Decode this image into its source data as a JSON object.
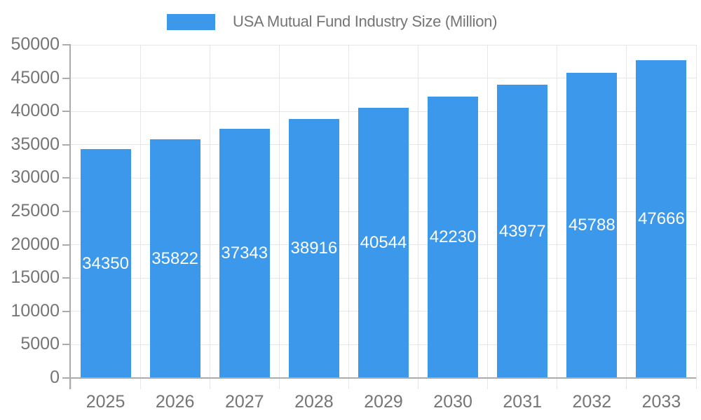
{
  "legend": {
    "label": "USA Mutual Fund Industry Size (Million)"
  },
  "chart_data": {
    "type": "bar",
    "title": "USA Mutual Fund Industry Size (Million)",
    "legend_position": "top",
    "categories": [
      "2025",
      "2026",
      "2027",
      "2028",
      "2029",
      "2030",
      "2031",
      "2032",
      "2033"
    ],
    "series": [
      {
        "name": "USA Mutual Fund Industry Size (Million)",
        "values": [
          34350,
          35822,
          37343,
          38916,
          40544,
          42230,
          43977,
          45788,
          47666
        ]
      }
    ],
    "bar_labels": [
      "34350",
      "35822",
      "37343",
      "38916",
      "40544",
      "42230",
      "43977",
      "45788",
      "47666"
    ],
    "xlabel": "",
    "ylabel": "",
    "ylim": [
      0,
      50000
    ],
    "ytick_labels": [
      "0",
      "5000",
      "10000",
      "15000",
      "20000",
      "25000",
      "30000",
      "35000",
      "40000",
      "45000",
      "50000"
    ],
    "grid": true
  },
  "colors": {
    "bar": "#3B98EB",
    "axis_text": "#757575",
    "legend_text": "#757575",
    "grid_line": "#E6E6E6",
    "axis_line": "#ABABAB",
    "bar_label_text": "#FFFFFF"
  }
}
